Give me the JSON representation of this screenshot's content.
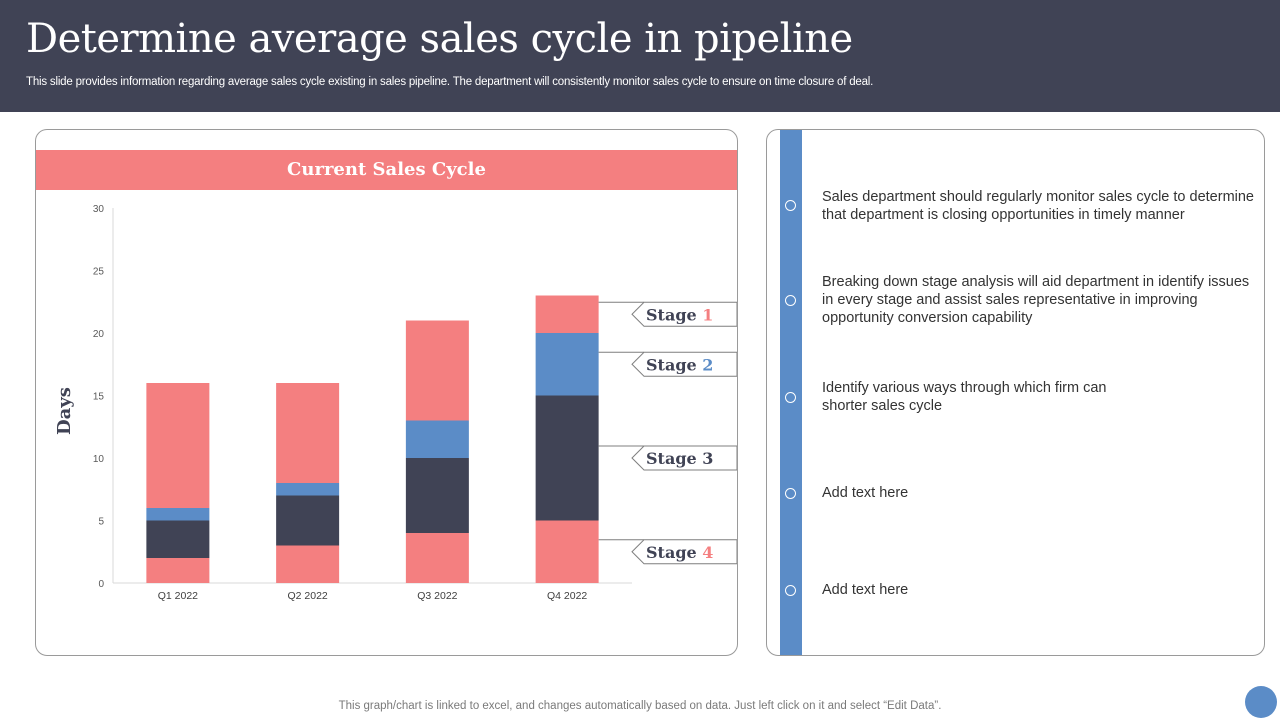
{
  "title": "Determine average sales cycle in pipeline",
  "subtitle": "This slide provides information regarding average sales cycle existing in sales pipeline. The department will consistently monitor sales cycle to ensure on time closure of deal.",
  "chart_banner": "Current Sales Cycle",
  "chart_data": {
    "type": "bar",
    "stacked": true,
    "title": "Current Sales Cycle",
    "xlabel": "",
    "ylabel": "Days",
    "ylim": [
      0,
      30
    ],
    "yticks": [
      "0",
      "5",
      "10",
      "15",
      "20",
      "25",
      "30"
    ],
    "categories": [
      "Q1 2022",
      "Q2 2022",
      "Q3 2022",
      "Q4 2022"
    ],
    "series": [
      {
        "name": "Stage 4",
        "values": [
          2,
          3,
          4,
          5
        ],
        "color": "#f47f80"
      },
      {
        "name": "Stage 3",
        "values": [
          3,
          4,
          6,
          10
        ],
        "color": "#404355"
      },
      {
        "name": "Stage 2",
        "values": [
          1,
          1,
          3,
          5
        ],
        "color": "#5b8cc7"
      },
      {
        "name": "Stage 1",
        "values": [
          10,
          8,
          8,
          3
        ],
        "color": "#f47f80"
      }
    ]
  },
  "callouts": [
    {
      "word": "Stage",
      "num": "1",
      "num_color": "#f47f80"
    },
    {
      "word": "Stage",
      "num": "2",
      "num_color": "#5b8cc7"
    },
    {
      "word": "Stage",
      "num": "3",
      "num_color": "#404355"
    },
    {
      "word": "Stage",
      "num": "4",
      "num_color": "#f47f80"
    }
  ],
  "info_items": [
    "Sales department should regularly monitor sales cycle to determine that department is closing opportunities in timely manner",
    "Breaking down stage analysis will aid department in identify issues in every stage and assist sales representative in improving opportunity conversion capability",
    "Identify various ways through which firm can shorter sales cycle",
    "Add text here",
    "Add text here"
  ],
  "footer": "This graph/chart is linked to excel,  and changes automatically based on data. Just left click on it and select “Edit Data”.",
  "colors": {
    "header_bg": "#404355",
    "accent_red": "#f47f80",
    "accent_blue": "#5b8cc7",
    "dark": "#404355"
  }
}
